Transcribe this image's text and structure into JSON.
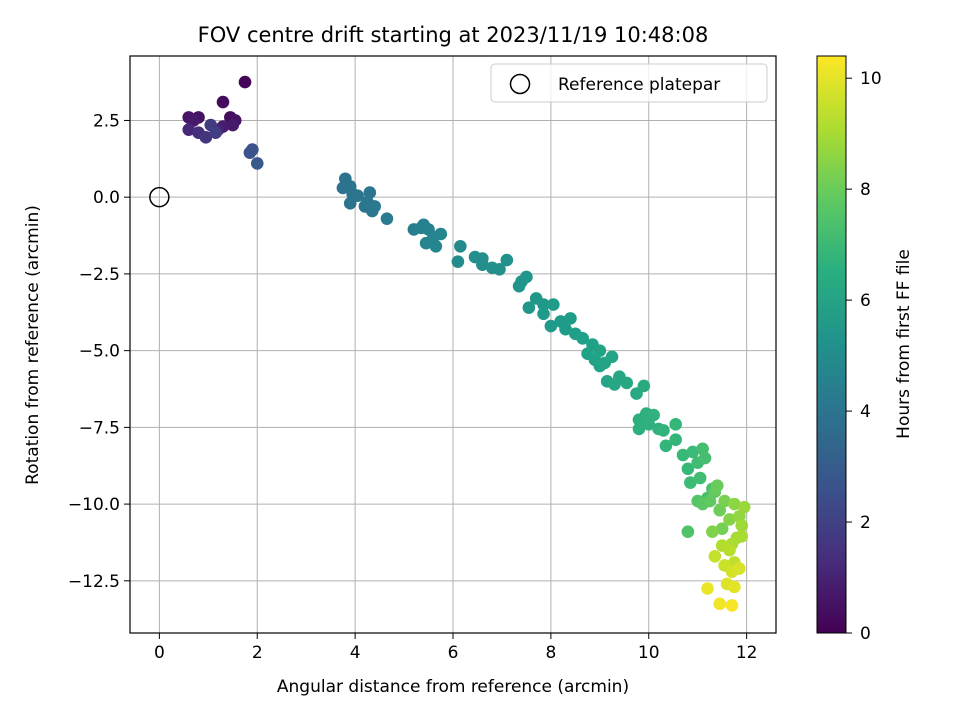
{
  "chart_data": {
    "type": "scatter",
    "title": "FOV centre drift starting at 2023/11/19 10:48:08",
    "xlabel": "Angular distance from reference (arcmin)",
    "ylabel": "Rotation from reference (arcmin)",
    "xlim": [
      -0.6,
      12.6
    ],
    "ylim": [
      -14.2,
      4.6
    ],
    "xticks": [
      0,
      2,
      4,
      6,
      8,
      10,
      12
    ],
    "xtick_labels": [
      "0",
      "2",
      "4",
      "6",
      "8",
      "10",
      "12"
    ],
    "yticks": [
      2.5,
      0.0,
      -2.5,
      -5.0,
      -7.5,
      -10.0,
      -12.5
    ],
    "ytick_labels": [
      "2.5",
      "0.0",
      "−2.5",
      "−5.0",
      "−7.5",
      "−10.0",
      "−12.5"
    ],
    "grid": true,
    "legend": {
      "position": "top-right",
      "entries": [
        {
          "label": "Reference platepar",
          "marker": "open-circle"
        }
      ]
    },
    "reference_point": {
      "x": 0.0,
      "y": 0.0
    },
    "colorbar": {
      "label": "Hours from first FF file",
      "cmap": "viridis",
      "range": [
        0,
        10.4
      ],
      "ticks": [
        0,
        2,
        4,
        6,
        8,
        10
      ],
      "tick_labels": [
        "0",
        "2",
        "4",
        "6",
        "8",
        "10"
      ]
    },
    "points": [
      [
        1.75,
        3.75,
        0.1
      ],
      [
        1.3,
        3.1,
        0.3
      ],
      [
        0.6,
        2.6,
        0.6
      ],
      [
        0.8,
        2.6,
        0.5
      ],
      [
        0.7,
        2.5,
        0.7
      ],
      [
        1.45,
        2.6,
        0.4
      ],
      [
        1.55,
        2.5,
        0.5
      ],
      [
        1.5,
        2.35,
        0.7
      ],
      [
        1.3,
        2.3,
        0.8
      ],
      [
        1.2,
        2.2,
        1.0
      ],
      [
        0.6,
        2.2,
        1.2
      ],
      [
        0.8,
        2.1,
        1.4
      ],
      [
        0.95,
        1.95,
        1.6
      ],
      [
        1.05,
        2.35,
        1.8
      ],
      [
        1.15,
        2.1,
        1.9
      ],
      [
        1.9,
        1.55,
        2.6
      ],
      [
        1.85,
        1.45,
        2.7
      ],
      [
        2.0,
        1.1,
        2.9
      ],
      [
        3.8,
        0.6,
        3.9
      ],
      [
        3.75,
        0.3,
        3.9
      ],
      [
        3.9,
        0.35,
        3.95
      ],
      [
        3.95,
        0.1,
        4.0
      ],
      [
        3.9,
        -0.2,
        4.0
      ],
      [
        4.05,
        0.05,
        4.05
      ],
      [
        4.2,
        -0.3,
        4.1
      ],
      [
        4.3,
        0.15,
        4.1
      ],
      [
        4.25,
        -0.15,
        4.15
      ],
      [
        4.35,
        -0.45,
        4.15
      ],
      [
        4.4,
        -0.3,
        4.2
      ],
      [
        4.65,
        -0.7,
        4.3
      ],
      [
        5.2,
        -1.05,
        4.5
      ],
      [
        5.35,
        -1.0,
        4.55
      ],
      [
        5.4,
        -0.9,
        4.6
      ],
      [
        5.5,
        -1.05,
        4.65
      ],
      [
        5.45,
        -1.5,
        4.7
      ],
      [
        5.6,
        -1.3,
        4.7
      ],
      [
        5.65,
        -1.6,
        4.75
      ],
      [
        5.75,
        -1.2,
        4.8
      ],
      [
        6.1,
        -2.1,
        5.0
      ],
      [
        6.15,
        -1.6,
        5.0
      ],
      [
        6.45,
        -1.95,
        5.1
      ],
      [
        6.6,
        -2.2,
        5.1
      ],
      [
        6.6,
        -2.0,
        5.15
      ],
      [
        6.8,
        -2.3,
        5.2
      ],
      [
        6.95,
        -2.35,
        5.2
      ],
      [
        7.1,
        -2.05,
        5.25
      ],
      [
        7.35,
        -2.9,
        5.4
      ],
      [
        7.4,
        -2.75,
        5.4
      ],
      [
        7.5,
        -2.6,
        5.45
      ],
      [
        7.55,
        -3.6,
        5.5
      ],
      [
        7.7,
        -3.3,
        5.5
      ],
      [
        7.85,
        -3.5,
        5.55
      ],
      [
        7.85,
        -3.8,
        5.6
      ],
      [
        8.0,
        -4.2,
        5.6
      ],
      [
        8.05,
        -3.5,
        5.65
      ],
      [
        8.2,
        -4.05,
        5.7
      ],
      [
        8.3,
        -4.3,
        5.7
      ],
      [
        8.4,
        -3.95,
        5.75
      ],
      [
        8.5,
        -4.45,
        5.8
      ],
      [
        8.65,
        -4.6,
        5.85
      ],
      [
        8.75,
        -5.1,
        5.9
      ],
      [
        8.85,
        -4.8,
        5.9
      ],
      [
        8.9,
        -5.3,
        5.95
      ],
      [
        9.0,
        -5.0,
        6.0
      ],
      [
        9.0,
        -5.5,
        6.0
      ],
      [
        9.1,
        -5.4,
        6.05
      ],
      [
        9.15,
        -6.0,
        6.1
      ],
      [
        9.25,
        -5.2,
        6.1
      ],
      [
        9.3,
        -6.1,
        6.15
      ],
      [
        9.4,
        -5.85,
        6.2
      ],
      [
        9.55,
        -6.05,
        6.25
      ],
      [
        9.75,
        -6.4,
        6.3
      ],
      [
        9.9,
        -6.15,
        6.35
      ],
      [
        9.8,
        -7.25,
        6.5
      ],
      [
        9.8,
        -7.55,
        6.55
      ],
      [
        9.95,
        -7.05,
        6.6
      ],
      [
        10.0,
        -7.4,
        6.6
      ],
      [
        10.1,
        -7.1,
        6.65
      ],
      [
        10.2,
        -7.55,
        6.7
      ],
      [
        10.3,
        -7.6,
        6.75
      ],
      [
        10.35,
        -8.1,
        6.8
      ],
      [
        10.55,
        -7.9,
        6.85
      ],
      [
        10.55,
        -7.4,
        6.9
      ],
      [
        10.7,
        -8.4,
        7.0
      ],
      [
        10.8,
        -8.85,
        7.0
      ],
      [
        10.9,
        -8.3,
        7.05
      ],
      [
        10.85,
        -9.3,
        7.1
      ],
      [
        11.0,
        -8.65,
        7.15
      ],
      [
        11.05,
        -9.15,
        7.2
      ],
      [
        11.1,
        -8.2,
        7.25
      ],
      [
        11.15,
        -8.5,
        7.3
      ],
      [
        11.2,
        -9.8,
        7.35
      ],
      [
        11.3,
        -9.5,
        7.4
      ],
      [
        10.8,
        -10.9,
        7.5
      ],
      [
        11.0,
        -9.9,
        7.6
      ],
      [
        11.1,
        -10.0,
        7.7
      ],
      [
        11.25,
        -9.9,
        7.8
      ],
      [
        11.35,
        -9.6,
        7.9
      ],
      [
        11.4,
        -9.4,
        8.0
      ],
      [
        11.45,
        -10.2,
        8.1
      ],
      [
        11.5,
        -10.8,
        8.2
      ],
      [
        11.55,
        -9.9,
        8.3
      ],
      [
        11.3,
        -10.9,
        8.4
      ],
      [
        11.65,
        -10.5,
        8.5
      ],
      [
        11.75,
        -10.0,
        8.6
      ],
      [
        11.85,
        -10.4,
        8.7
      ],
      [
        11.95,
        -10.1,
        8.8
      ],
      [
        11.9,
        -10.7,
        8.9
      ],
      [
        11.8,
        -11.1,
        9.0
      ],
      [
        11.9,
        -11.05,
        9.05
      ],
      [
        11.7,
        -11.3,
        9.1
      ],
      [
        11.5,
        -11.35,
        9.2
      ],
      [
        11.65,
        -11.5,
        9.3
      ],
      [
        11.75,
        -11.9,
        9.4
      ],
      [
        11.35,
        -11.7,
        9.5
      ],
      [
        11.55,
        -12.0,
        9.6
      ],
      [
        11.7,
        -12.2,
        9.7
      ],
      [
        11.85,
        -12.1,
        9.8
      ],
      [
        11.6,
        -12.6,
        9.9
      ],
      [
        11.75,
        -12.7,
        10.0
      ],
      [
        11.2,
        -12.75,
        10.1
      ],
      [
        11.45,
        -13.25,
        10.2
      ],
      [
        11.7,
        -13.3,
        10.3
      ]
    ]
  }
}
